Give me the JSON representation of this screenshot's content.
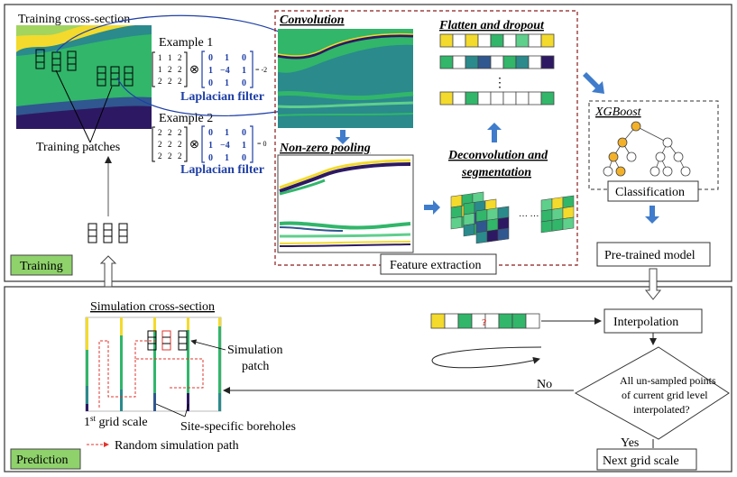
{
  "colors": {
    "yellow": "#f3da2c",
    "green": "#31b66a",
    "teal": "#2a8a8c",
    "blue": "#30578f",
    "navy": "#2d1963",
    "lightgreen": "#5fcf8c",
    "arrow_blue": "#3f7ccb",
    "label_green": "#8fd26c",
    "path_red": "#e0342c"
  },
  "training": {
    "cross_section_title": "Training cross-section",
    "example1_label": "Example 1",
    "example2_label": "Example 2",
    "matrix1": [
      [
        "1",
        "1",
        "2"
      ],
      [
        "1",
        "2",
        "2"
      ],
      [
        "2",
        "2",
        "2"
      ]
    ],
    "matrix2": [
      [
        "2",
        "2",
        "2"
      ],
      [
        "2",
        "2",
        "2"
      ],
      [
        "2",
        "2",
        "2"
      ]
    ],
    "laplacian": [
      [
        "0",
        "1",
        "0"
      ],
      [
        "1",
        "−4",
        "1"
      ],
      [
        "0",
        "1",
        "0"
      ]
    ],
    "otimes": "⊗",
    "result1": "= -2",
    "result2": "= 0",
    "laplacian_label_1": "Laplacian filter",
    "laplacian_label_2": "Laplacian filter",
    "patches_label": "Training patches",
    "stage_label": "Training"
  },
  "feature": {
    "convolution_title": "Convolution",
    "pooling_title": "Non-zero pooling",
    "flatten_title": "Flatten and dropout",
    "deconv_title_line1": "Deconvolution and",
    "deconv_title_line2": "segmentation",
    "ellipsis_v": "⋮",
    "ellipsis_h": "… …",
    "box_label": "Feature extraction"
  },
  "xgboost": {
    "title": "XGBoost",
    "classification_label": "Classification",
    "pretrained_label": "Pre-trained model"
  },
  "prediction": {
    "sim_title": "Simulation cross-section",
    "sim_patch_line1": "Simulation",
    "sim_patch_line2": "patch",
    "grid_scale_prefix": "1",
    "grid_scale_sup": "st",
    "grid_scale_suffix": " grid scale",
    "boreholes_label": "Site-specific boreholes",
    "random_path_label": "Random simulation path",
    "question_mark": "?",
    "interpolation_label": "Interpolation",
    "decision_line1": "All un-sampled points",
    "decision_line2": "of current grid level",
    "decision_line3": "interpolated?",
    "no_label": "No",
    "yes_label": "Yes",
    "next_grid_label": "Next grid scale",
    "stage_label": "Prediction"
  }
}
